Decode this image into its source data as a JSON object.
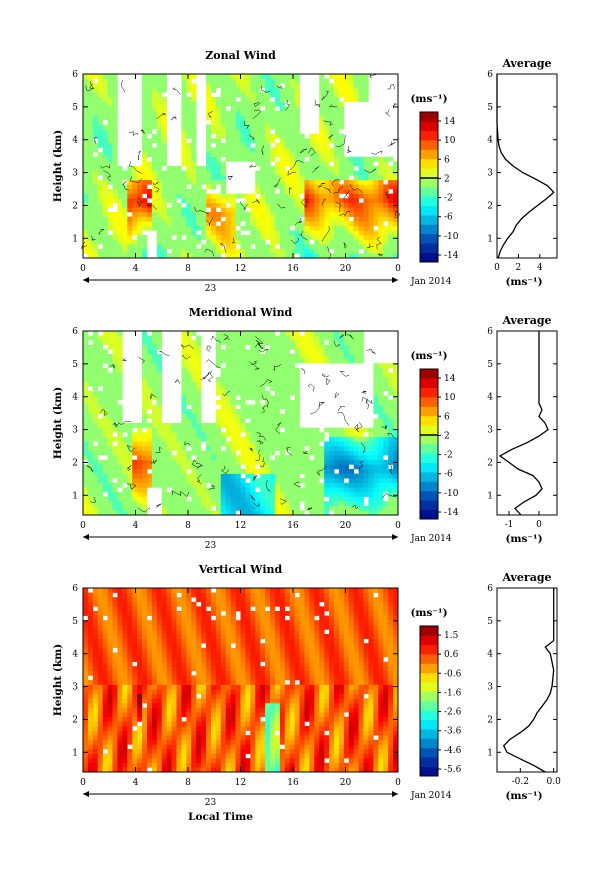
{
  "date_label": "Jan 2014",
  "day_label": "23",
  "xlabel_bottom": "Local Time",
  "x_ticks": [
    "0",
    "4",
    "8",
    "12",
    "16",
    "20",
    "0"
  ],
  "y_ticks": [
    "1",
    "2",
    "3",
    "4",
    "5",
    "6"
  ],
  "colorbar_unit": "(ms⁻¹)",
  "avg_unit": "(ms⁻¹)",
  "chart_data": [
    {
      "type": "heatmap",
      "title": "Zonal Wind",
      "ylabel": "Height (km)",
      "x_range": [
        0,
        24
      ],
      "y_range": [
        0.4,
        6
      ],
      "cbar_ticks": [
        "14",
        "10",
        "6",
        "2",
        "-2",
        "-6",
        "-10",
        "-14"
      ],
      "cbar_range": [
        -16,
        16
      ],
      "avg_title": "Average",
      "avg_ticks": [
        "0",
        "2",
        "4"
      ],
      "avg_xlim": [
        0,
        5.6
      ],
      "avg_profile": [
        [
          0.4,
          0.1
        ],
        [
          0.6,
          0.3
        ],
        [
          0.8,
          0.6
        ],
        [
          1.0,
          1.0
        ],
        [
          1.2,
          1.5
        ],
        [
          1.4,
          1.8
        ],
        [
          1.6,
          2.3
        ],
        [
          1.8,
          3.0
        ],
        [
          2.0,
          3.8
        ],
        [
          2.2,
          4.6
        ],
        [
          2.4,
          5.3
        ],
        [
          2.6,
          4.7
        ],
        [
          2.8,
          3.6
        ],
        [
          3.0,
          2.4
        ],
        [
          3.2,
          1.5
        ],
        [
          3.4,
          0.8
        ],
        [
          3.6,
          0.4
        ],
        [
          3.8,
          0.2
        ],
        [
          4.0,
          0.1
        ],
        [
          4.5,
          0.0
        ],
        [
          5.0,
          0.0
        ],
        [
          6.0,
          0.0
        ]
      ]
    },
    {
      "type": "heatmap",
      "title": "Meridional Wind",
      "ylabel": "Height (km)",
      "x_range": [
        0,
        24
      ],
      "y_range": [
        0.4,
        6
      ],
      "cbar_ticks": [
        "14",
        "10",
        "6",
        "2",
        "-2",
        "-6",
        "-10",
        "-14"
      ],
      "cbar_range": [
        -16,
        16
      ],
      "avg_title": "Average",
      "avg_ticks": [
        "-1",
        "0"
      ],
      "avg_xlim": [
        -1.4,
        0.6
      ],
      "avg_profile": [
        [
          0.4,
          -0.6
        ],
        [
          0.6,
          -0.8
        ],
        [
          0.8,
          -0.5
        ],
        [
          1.0,
          -0.1
        ],
        [
          1.2,
          0.1
        ],
        [
          1.4,
          0.0
        ],
        [
          1.6,
          -0.2
        ],
        [
          1.8,
          -0.7
        ],
        [
          2.0,
          -1.0
        ],
        [
          2.2,
          -1.3
        ],
        [
          2.4,
          -0.9
        ],
        [
          2.6,
          -0.4
        ],
        [
          2.8,
          0.0
        ],
        [
          3.0,
          0.3
        ],
        [
          3.2,
          0.2
        ],
        [
          3.4,
          0.0
        ],
        [
          3.6,
          0.1
        ],
        [
          3.8,
          0.0
        ],
        [
          4.0,
          0.0
        ],
        [
          5.0,
          0.0
        ],
        [
          6.0,
          0.0
        ]
      ]
    },
    {
      "type": "heatmap",
      "title": "Vertical Wind",
      "ylabel": "Height (km)",
      "xlabel": "Local Time",
      "x_range": [
        0,
        24
      ],
      "y_range": [
        0.4,
        6
      ],
      "cbar_ticks": [
        "1.5",
        "0.6",
        "-0.6",
        "-1.6",
        "-2.6",
        "-3.6",
        "-4.6",
        "-5.6"
      ],
      "cbar_range": [
        -6,
        2
      ],
      "avg_title": "Average",
      "avg_ticks": [
        "-0.2",
        "0.0"
      ],
      "avg_xlim": [
        -0.34,
        0.02
      ],
      "avg_profile": [
        [
          0.4,
          -0.05
        ],
        [
          0.6,
          -0.12
        ],
        [
          0.8,
          -0.2
        ],
        [
          1.0,
          -0.28
        ],
        [
          1.2,
          -0.3
        ],
        [
          1.4,
          -0.26
        ],
        [
          1.6,
          -0.2
        ],
        [
          1.8,
          -0.15
        ],
        [
          2.0,
          -0.12
        ],
        [
          2.2,
          -0.1
        ],
        [
          2.4,
          -0.07
        ],
        [
          2.6,
          -0.04
        ],
        [
          2.8,
          -0.02
        ],
        [
          3.0,
          -0.01
        ],
        [
          3.5,
          0.0
        ],
        [
          4.0,
          -0.02
        ],
        [
          4.2,
          -0.05
        ],
        [
          4.4,
          0.0
        ],
        [
          5.0,
          0.0
        ],
        [
          6.0,
          0.0
        ]
      ]
    }
  ]
}
